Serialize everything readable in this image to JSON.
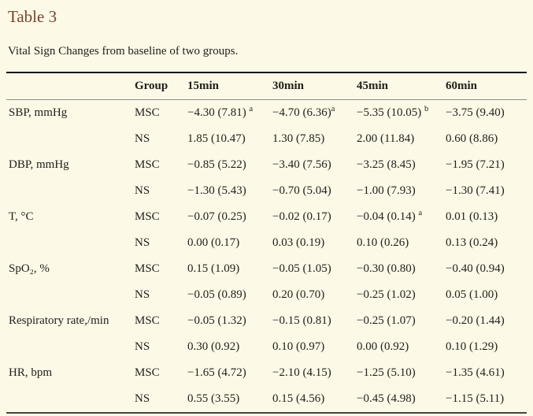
{
  "page": {
    "background_color": "#fdf9e7",
    "title_color": "#78432d",
    "text_color": "#22201a",
    "rule_top_color": "#161612",
    "rule_header_color": "#8d9084",
    "rule_bottom_color": "#45453f"
  },
  "title": "Table 3",
  "caption": "Vital Sign Changes from baseline of two groups.",
  "table": {
    "columns": [
      "",
      "Group",
      "15min",
      "30min",
      "45min",
      "60min"
    ],
    "rows": [
      {
        "label": "SBP, mmHg",
        "group": "MSC",
        "values": [
          {
            "text": "−4.30 (7.81)",
            "sup": "a",
            "gap": true
          },
          {
            "text": "−4.70 (6.36)",
            "sup": "a",
            "gap": false
          },
          {
            "text": "−5.35 (10.05)",
            "sup": "b",
            "gap": true
          },
          {
            "text": "−3.75 (9.40)"
          }
        ]
      },
      {
        "label": "",
        "group": "NS",
        "values": [
          {
            "text": "1.85 (10.47)"
          },
          {
            "text": "1.30 (7.85)"
          },
          {
            "text": "2.00 (11.84)"
          },
          {
            "text": "0.60 (8.86)"
          }
        ]
      },
      {
        "label": "DBP, mmHg",
        "group": "MSC",
        "values": [
          {
            "text": "−0.85 (5.22)"
          },
          {
            "text": "−3.40 (7.56)"
          },
          {
            "text": "−3.25 (8.45)"
          },
          {
            "text": "−1.95 (7.21)"
          }
        ]
      },
      {
        "label": "",
        "group": "NS",
        "values": [
          {
            "text": "−1.30 (5.43)"
          },
          {
            "text": "−0.70 (5.04)"
          },
          {
            "text": "−1.00 (7.93)"
          },
          {
            "text": "−1.30 (7.41)"
          }
        ]
      },
      {
        "label": "T, °C",
        "group": "MSC",
        "values": [
          {
            "text": "−0.07 (0.25)"
          },
          {
            "text": "−0.02 (0.17)"
          },
          {
            "text": "−0.04 (0.14)",
            "sup": "a",
            "gap": true
          },
          {
            "text": "0.01 (0.13)"
          }
        ]
      },
      {
        "label": "",
        "group": "NS",
        "values": [
          {
            "text": "0.00 (0.17)"
          },
          {
            "text": "0.03 (0.19)"
          },
          {
            "text": "0.10 (0.26)"
          },
          {
            "text": "0.13 (0.24)"
          }
        ]
      },
      {
        "label": "SpO₂, %",
        "group": "MSC",
        "values": [
          {
            "text": "0.15 (1.09)"
          },
          {
            "text": "−0.05 (1.05)"
          },
          {
            "text": "−0.30 (0.80)"
          },
          {
            "text": "−0.40 (0.94)"
          }
        ]
      },
      {
        "label": "",
        "group": "NS",
        "values": [
          {
            "text": "−0.05 (0.89)"
          },
          {
            "text": "0.20 (0.70)"
          },
          {
            "text": "−0.25 (1.02)"
          },
          {
            "text": "0.05 (1.00)"
          }
        ]
      },
      {
        "label": "Respiratory rate,/min",
        "group": "MSC",
        "values": [
          {
            "text": "−0.05 (1.32)"
          },
          {
            "text": "−0.15 (0.81)"
          },
          {
            "text": "−0.25 (1.07)"
          },
          {
            "text": "−0.20 (1.44)"
          }
        ]
      },
      {
        "label": "",
        "group": "NS",
        "values": [
          {
            "text": "0.30 (0.92)"
          },
          {
            "text": "0.10 (0.97)"
          },
          {
            "text": "0.00 (0.92)"
          },
          {
            "text": "0.10 (1.29)"
          }
        ]
      },
      {
        "label": "HR, bpm",
        "group": "MSC",
        "values": [
          {
            "text": "−1.65 (4.72)"
          },
          {
            "text": "−2.10 (4.15)"
          },
          {
            "text": "−1.25 (5.10)"
          },
          {
            "text": "−1.35 (4.61)"
          }
        ]
      },
      {
        "label": "",
        "group": "NS",
        "values": [
          {
            "text": "0.55 (3.55)"
          },
          {
            "text": "0.15 (4.56)"
          },
          {
            "text": "−0.45 (4.98)"
          },
          {
            "text": "−1.15 (5.11)"
          }
        ]
      }
    ]
  }
}
